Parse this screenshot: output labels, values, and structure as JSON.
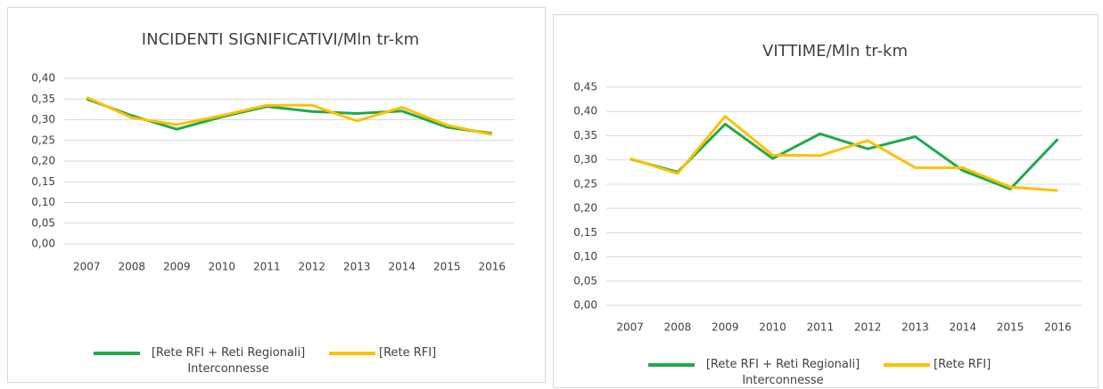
{
  "chart_data": [
    {
      "type": "line",
      "title": "INCIDENTI SIGNIFICATIVI/Mln tr-km",
      "categories": [
        "2007",
        "2008",
        "2009",
        "2010",
        "2011",
        "2012",
        "2013",
        "2014",
        "2015",
        "2016"
      ],
      "series": [
        {
          "name": "[Rete RFI + Reti Regionali] Interconnesse",
          "color": "#1faa4a",
          "values": [
            0.35,
            0.31,
            0.277,
            0.307,
            0.332,
            0.32,
            0.315,
            0.321,
            0.282,
            0.267
          ]
        },
        {
          "name": "[Rete RFI]",
          "color": "#ffc000",
          "values": [
            0.354,
            0.305,
            0.288,
            0.31,
            0.335,
            0.335,
            0.297,
            0.33,
            0.287,
            0.264
          ]
        }
      ],
      "ylim": [
        0,
        0.4
      ],
      "yticks": [
        {
          "value": 0,
          "label": "0,00"
        },
        {
          "value": 0.05,
          "label": "0,05"
        },
        {
          "value": 0.1,
          "label": "0,10"
        },
        {
          "value": 0.15,
          "label": "0,15"
        },
        {
          "value": 0.2,
          "label": "0,20"
        },
        {
          "value": 0.25,
          "label": "0,25"
        },
        {
          "value": 0.3,
          "label": "0,30"
        },
        {
          "value": 0.35,
          "label": "0,35"
        },
        {
          "value": 0.4,
          "label": "0,40"
        }
      ],
      "grid": true,
      "legend": "bottom"
    },
    {
      "type": "line",
      "title": "VITTIME/Mln tr-km",
      "categories": [
        "2007",
        "2008",
        "2009",
        "2010",
        "2011",
        "2012",
        "2013",
        "2014",
        "2015",
        "2016"
      ],
      "series": [
        {
          "name": "[Rete RFI + Reti Regionali] Interconnesse",
          "color": "#1faa4a",
          "values": [
            0.302,
            0.275,
            0.374,
            0.303,
            0.354,
            0.323,
            0.348,
            0.278,
            0.24,
            0.343
          ]
        },
        {
          "name": "[Rete RFI]",
          "color": "#ffc000",
          "values": [
            0.303,
            0.272,
            0.39,
            0.31,
            0.309,
            0.34,
            0.284,
            0.284,
            0.244,
            0.237
          ]
        }
      ],
      "ylim": [
        0,
        0.45
      ],
      "yticks": [
        {
          "value": 0,
          "label": "0,00"
        },
        {
          "value": 0.05,
          "label": "0,05"
        },
        {
          "value": 0.1,
          "label": "0,10"
        },
        {
          "value": 0.15,
          "label": "0,15"
        },
        {
          "value": 0.2,
          "label": "0,20"
        },
        {
          "value": 0.25,
          "label": "0,25"
        },
        {
          "value": 0.3,
          "label": "0,30"
        },
        {
          "value": 0.35,
          "label": "0,35"
        },
        {
          "value": 0.4,
          "label": "0,40"
        },
        {
          "value": 0.45,
          "label": "0,45"
        }
      ],
      "grid": true,
      "legend": "bottom"
    }
  ]
}
